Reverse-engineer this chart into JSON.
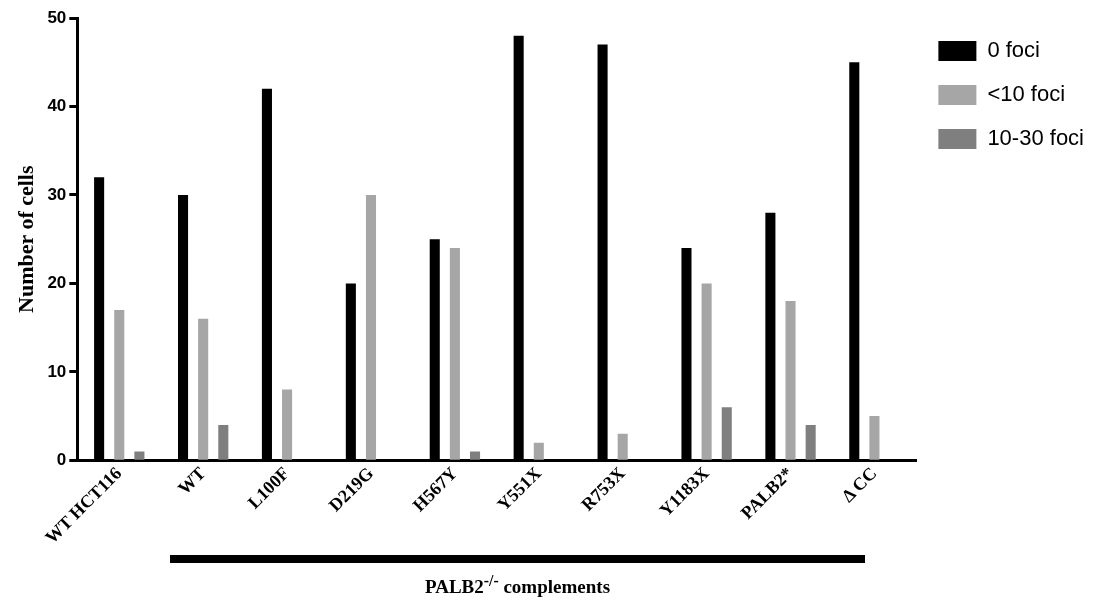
{
  "chart_data": {
    "type": "bar",
    "ylabel": "Number of cells",
    "categories": [
      "WT HCT116",
      "WT",
      "L100F",
      "D219G",
      "H567Y",
      "Y551X",
      "R753X",
      "Y1183X",
      "PALB2*",
      "Δ CC"
    ],
    "series": [
      {
        "name": "0 foci",
        "color": "#000000",
        "values": [
          32,
          30,
          42,
          20,
          25,
          48,
          47,
          24,
          28,
          45
        ]
      },
      {
        "name": "<10 foci",
        "color": "#a6a6a6",
        "values": [
          17,
          16,
          8,
          30,
          24,
          2,
          3,
          20,
          18,
          5
        ]
      },
      {
        "name": "10-30 foci",
        "color": "#7f7f7f",
        "values": [
          1,
          4,
          0,
          0,
          1,
          0,
          0,
          6,
          4,
          0
        ]
      }
    ],
    "ylim": [
      0,
      50
    ],
    "yticks": [
      0,
      10,
      20,
      30,
      40,
      50
    ],
    "grid": false,
    "legend": "top right",
    "annotations": [
      "PALB2$^{-/-}$ complements"
    ]
  }
}
